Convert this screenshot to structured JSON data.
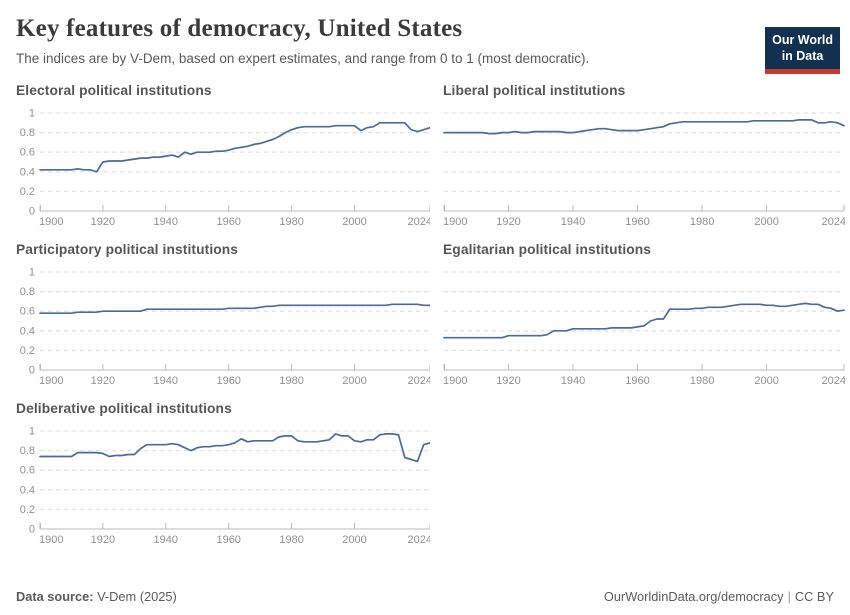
{
  "header": {
    "title": "Key features of democracy, United States",
    "subtitle": "The indices are by V-Dem, based on expert estimates, and range from 0 to 1 (most democratic).",
    "logo": {
      "line1": "Our World",
      "line2": "in Data"
    }
  },
  "footer": {
    "source_label": "Data source:",
    "source_value": " V-Dem (2025)",
    "url": "OurWorldinData.org/democracy",
    "separator": "|",
    "license": "CC BY"
  },
  "colors": {
    "line": "#4c6a9c",
    "grid": "#e2e2e2",
    "axis": "#bbbbbb",
    "tick_label": "#909090",
    "logo_bg": "#12304f",
    "logo_red": "#c5392f"
  },
  "chart_data": {
    "type": "line",
    "x_min": 1900,
    "x_max": 2024,
    "ylim": [
      0,
      1
    ],
    "x_ticks": [
      1900,
      1920,
      1940,
      1960,
      1980,
      2000,
      2024
    ],
    "y_ticks": [
      0,
      0.2,
      0.4,
      0.6,
      0.8,
      1
    ],
    "grid": "horizontal-dashed",
    "legend": "none",
    "years": [
      1900,
      1902,
      1904,
      1906,
      1908,
      1910,
      1912,
      1914,
      1916,
      1918,
      1920,
      1922,
      1924,
      1926,
      1928,
      1930,
      1932,
      1934,
      1936,
      1938,
      1940,
      1942,
      1944,
      1946,
      1948,
      1950,
      1952,
      1954,
      1956,
      1958,
      1960,
      1962,
      1964,
      1966,
      1968,
      1970,
      1972,
      1974,
      1976,
      1978,
      1980,
      1982,
      1984,
      1986,
      1988,
      1990,
      1992,
      1994,
      1996,
      1998,
      2000,
      2002,
      2004,
      2006,
      2008,
      2010,
      2012,
      2014,
      2016,
      2018,
      2020,
      2022,
      2024
    ],
    "panels": [
      {
        "title": "Electoral political institutions",
        "column": "left",
        "y_axis_labels": true,
        "values": [
          0.42,
          0.42,
          0.42,
          0.42,
          0.42,
          0.42,
          0.43,
          0.42,
          0.42,
          0.4,
          0.5,
          0.51,
          0.51,
          0.51,
          0.52,
          0.53,
          0.54,
          0.54,
          0.55,
          0.55,
          0.56,
          0.57,
          0.55,
          0.6,
          0.58,
          0.6,
          0.6,
          0.6,
          0.61,
          0.61,
          0.62,
          0.64,
          0.65,
          0.66,
          0.68,
          0.69,
          0.71,
          0.73,
          0.76,
          0.8,
          0.83,
          0.85,
          0.86,
          0.86,
          0.86,
          0.86,
          0.86,
          0.87,
          0.87,
          0.87,
          0.87,
          0.82,
          0.85,
          0.86,
          0.9,
          0.9,
          0.9,
          0.9,
          0.9,
          0.83,
          0.81,
          0.83,
          0.85
        ]
      },
      {
        "title": "Liberal political institutions",
        "column": "right",
        "y_axis_labels": false,
        "values": [
          0.8,
          0.8,
          0.8,
          0.8,
          0.8,
          0.8,
          0.8,
          0.79,
          0.79,
          0.8,
          0.8,
          0.81,
          0.8,
          0.8,
          0.81,
          0.81,
          0.81,
          0.81,
          0.81,
          0.8,
          0.8,
          0.81,
          0.82,
          0.83,
          0.84,
          0.84,
          0.83,
          0.82,
          0.82,
          0.82,
          0.82,
          0.83,
          0.84,
          0.85,
          0.86,
          0.89,
          0.9,
          0.91,
          0.91,
          0.91,
          0.91,
          0.91,
          0.91,
          0.91,
          0.91,
          0.91,
          0.91,
          0.91,
          0.92,
          0.92,
          0.92,
          0.92,
          0.92,
          0.92,
          0.92,
          0.93,
          0.93,
          0.93,
          0.9,
          0.9,
          0.91,
          0.9,
          0.87
        ]
      },
      {
        "title": "Participatory political institutions",
        "column": "left",
        "y_axis_labels": true,
        "values": [
          0.58,
          0.58,
          0.58,
          0.58,
          0.58,
          0.58,
          0.59,
          0.59,
          0.59,
          0.59,
          0.6,
          0.6,
          0.6,
          0.6,
          0.6,
          0.6,
          0.6,
          0.62,
          0.62,
          0.62,
          0.62,
          0.62,
          0.62,
          0.62,
          0.62,
          0.62,
          0.62,
          0.62,
          0.62,
          0.62,
          0.63,
          0.63,
          0.63,
          0.63,
          0.63,
          0.64,
          0.65,
          0.65,
          0.66,
          0.66,
          0.66,
          0.66,
          0.66,
          0.66,
          0.66,
          0.66,
          0.66,
          0.66,
          0.66,
          0.66,
          0.66,
          0.66,
          0.66,
          0.66,
          0.66,
          0.66,
          0.67,
          0.67,
          0.67,
          0.67,
          0.67,
          0.66,
          0.66
        ]
      },
      {
        "title": "Egalitarian political institutions",
        "column": "right",
        "y_axis_labels": false,
        "values": [
          0.33,
          0.33,
          0.33,
          0.33,
          0.33,
          0.33,
          0.33,
          0.33,
          0.33,
          0.33,
          0.35,
          0.35,
          0.35,
          0.35,
          0.35,
          0.35,
          0.36,
          0.4,
          0.4,
          0.4,
          0.42,
          0.42,
          0.42,
          0.42,
          0.42,
          0.42,
          0.43,
          0.43,
          0.43,
          0.43,
          0.44,
          0.45,
          0.5,
          0.52,
          0.52,
          0.62,
          0.62,
          0.62,
          0.62,
          0.63,
          0.63,
          0.64,
          0.64,
          0.64,
          0.65,
          0.66,
          0.67,
          0.67,
          0.67,
          0.67,
          0.66,
          0.66,
          0.65,
          0.65,
          0.66,
          0.67,
          0.68,
          0.67,
          0.67,
          0.64,
          0.63,
          0.6,
          0.61
        ]
      },
      {
        "title": "Deliberative political institutions",
        "column": "left",
        "y_axis_labels": true,
        "values": [
          0.74,
          0.74,
          0.74,
          0.74,
          0.74,
          0.74,
          0.78,
          0.78,
          0.78,
          0.78,
          0.77,
          0.74,
          0.75,
          0.75,
          0.76,
          0.76,
          0.82,
          0.86,
          0.86,
          0.86,
          0.86,
          0.87,
          0.86,
          0.83,
          0.8,
          0.83,
          0.84,
          0.84,
          0.85,
          0.85,
          0.86,
          0.88,
          0.92,
          0.89,
          0.9,
          0.9,
          0.9,
          0.9,
          0.94,
          0.95,
          0.95,
          0.9,
          0.89,
          0.89,
          0.89,
          0.9,
          0.91,
          0.97,
          0.95,
          0.95,
          0.9,
          0.89,
          0.91,
          0.91,
          0.96,
          0.97,
          0.97,
          0.96,
          0.73,
          0.71,
          0.69,
          0.86,
          0.88
        ]
      }
    ]
  }
}
